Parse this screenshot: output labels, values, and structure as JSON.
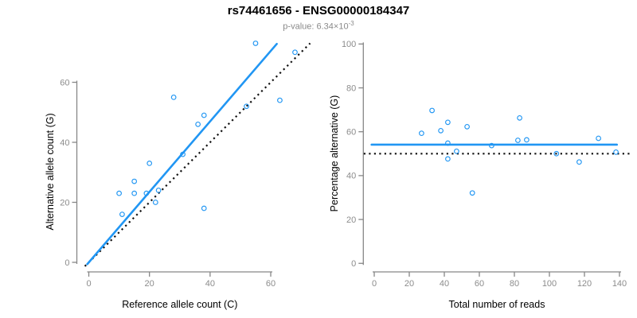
{
  "title": "rs74461656 - ENSG00000184347",
  "subtitle": {
    "prefix": "p-value: 6.34×10",
    "exponent": "-3"
  },
  "colors": {
    "accent_blue": "#2196F3",
    "axis_gray": "#878787",
    "tick_label_gray": "#8c8c8c",
    "axis_title_black": "#000000",
    "dotted_black": "#111111"
  },
  "chart_data": [
    {
      "type": "scatter",
      "name": "allele-count-scatter",
      "xlabel": "Reference allele count (C)",
      "ylabel": "Alternative allele count (G)",
      "xticks": [
        0,
        20,
        40,
        60
      ],
      "yticks": [
        0,
        20,
        40,
        60
      ],
      "xlim": [
        -3,
        71
      ],
      "ylim": [
        -3,
        75
      ],
      "grid": false,
      "points": [
        [
          11,
          16
        ],
        [
          10,
          23
        ],
        [
          15,
          23
        ],
        [
          15,
          27
        ],
        [
          19,
          23
        ],
        [
          22,
          20
        ],
        [
          23,
          24
        ],
        [
          20,
          33
        ],
        [
          38,
          18
        ],
        [
          31,
          36
        ],
        [
          36,
          46
        ],
        [
          28,
          55
        ],
        [
          38,
          49
        ],
        [
          52,
          52
        ],
        [
          55,
          73
        ],
        [
          63,
          54
        ],
        [
          68,
          70
        ]
      ],
      "lines": [
        {
          "name": "fitted-ratio-line",
          "style": "solid",
          "color": "blue",
          "x1": -0.5,
          "y1": -0.6,
          "x2": 62,
          "y2": 72.8
        },
        {
          "name": "identity-line",
          "style": "dotted",
          "color": "black",
          "x1": -1.3,
          "y1": -1.3,
          "x2": 73,
          "y2": 73
        }
      ]
    },
    {
      "type": "scatter",
      "name": "percentage-reads-scatter",
      "xlabel": "Total number of reads",
      "ylabel": "Percentage alternative (G)",
      "xticks": [
        0,
        20,
        40,
        60,
        80,
        100,
        120,
        140
      ],
      "yticks": [
        0,
        20,
        40,
        60,
        80,
        100
      ],
      "xlim": [
        -6.5,
        146.5
      ],
      "ylim": [
        -4,
        104
      ],
      "grid": false,
      "points": [
        [
          27,
          59.3
        ],
        [
          33,
          69.7
        ],
        [
          38,
          60.5
        ],
        [
          42,
          64.3
        ],
        [
          42,
          54.8
        ],
        [
          42,
          47.6
        ],
        [
          47,
          51.1
        ],
        [
          53,
          62.3
        ],
        [
          56,
          32.1
        ],
        [
          67,
          53.7
        ],
        [
          82,
          56.1
        ],
        [
          83,
          66.3
        ],
        [
          87,
          56.3
        ],
        [
          104,
          50
        ],
        [
          117,
          46.2
        ],
        [
          128,
          57
        ],
        [
          138,
          50.7
        ]
      ],
      "lines": [
        {
          "name": "mean-percentage-line",
          "style": "solid",
          "color": "blue",
          "x1": -1.5,
          "y1": 54.1,
          "x2": 138.5,
          "y2": 54.1
        },
        {
          "name": "fifty-percent-line",
          "style": "dotted",
          "color": "black",
          "x1": -6,
          "y1": 50,
          "x2": 146,
          "y2": 50
        }
      ]
    }
  ]
}
